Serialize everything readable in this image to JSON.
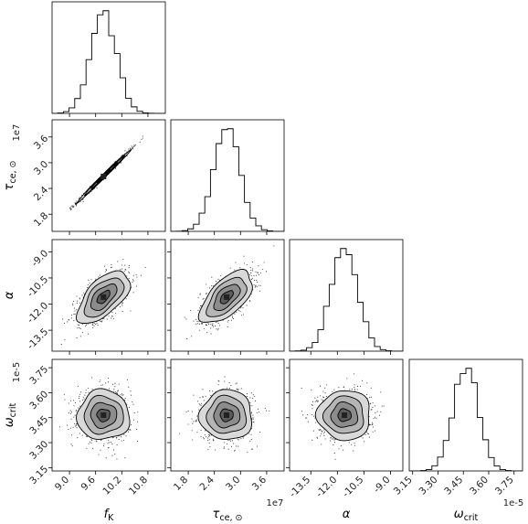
{
  "chart_data": {
    "type": "corner",
    "parameters": [
      {
        "key": "fK",
        "label": "f",
        "label_sub": "K",
        "range": [
          8.6,
          11.2
        ],
        "ticks": [
          9.0,
          9.6,
          10.2,
          10.8
        ],
        "tick_labels": [
          "9.0",
          "9.6",
          "10.2",
          "10.8"
        ],
        "mean": 9.78,
        "sd": 0.3,
        "offset_text": ""
      },
      {
        "key": "tau",
        "label": "τ",
        "label_sub": "ce, ⊙",
        "range": [
          1.4,
          4.0
        ],
        "ticks": [
          1.8,
          2.4,
          3.0,
          3.6
        ],
        "tick_labels": [
          "1.8",
          "2.4",
          "3.0",
          "3.6"
        ],
        "mean": 2.68,
        "sd": 0.3,
        "offset_text": "1e7"
      },
      {
        "key": "alpha",
        "label": "α",
        "label_sub": "",
        "range": [
          -14.7,
          -8.3
        ],
        "ticks": [
          -13.5,
          -12.0,
          -10.5,
          -9.0
        ],
        "tick_labels": [
          "-13.5",
          "-12.0",
          "-10.5",
          "-9.0"
        ],
        "mean": -11.6,
        "sd": 0.75,
        "offset_text": ""
      },
      {
        "key": "omega",
        "label": "ω",
        "label_sub": "crit",
        "range": [
          3.13,
          3.8
        ],
        "ticks": [
          3.15,
          3.3,
          3.45,
          3.6,
          3.75
        ],
        "tick_labels": [
          "3.15",
          "3.30",
          "3.45",
          "3.60",
          "3.75"
        ],
        "mean": 3.465,
        "sd": 0.075,
        "offset_text": "1e-5"
      }
    ],
    "correlations": [
      {
        "pair": [
          "fK",
          "tau"
        ],
        "r": 0.995
      },
      {
        "pair": [
          "fK",
          "alpha"
        ],
        "r": 0.6
      },
      {
        "pair": [
          "tau",
          "alpha"
        ],
        "r": 0.6
      },
      {
        "pair": [
          "fK",
          "omega"
        ],
        "r": 0.0
      },
      {
        "pair": [
          "tau",
          "omega"
        ],
        "r": 0.0
      },
      {
        "pair": [
          "alpha",
          "omega"
        ],
        "r": 0.0
      }
    ],
    "marginal_histograms": true,
    "contour_levels_sigma": [
      0.5,
      1.0,
      1.5,
      2.0
    ],
    "scatter_outside_contours": true
  }
}
